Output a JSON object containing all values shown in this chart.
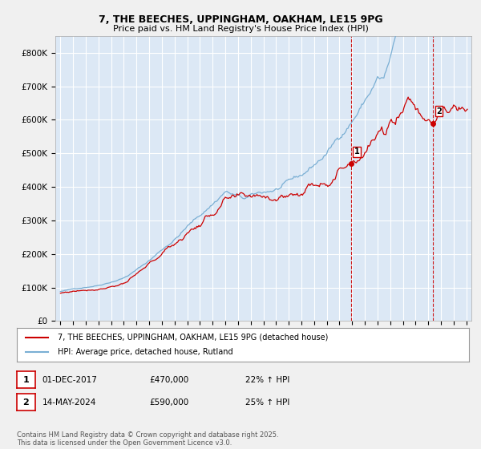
{
  "title1": "7, THE BEECHES, UPPINGHAM, OAKHAM, LE15 9PG",
  "title2": "Price paid vs. HM Land Registry's House Price Index (HPI)",
  "ylim": [
    0,
    850000
  ],
  "yticks": [
    0,
    100000,
    200000,
    300000,
    400000,
    500000,
    600000,
    700000,
    800000
  ],
  "ytick_labels": [
    "£0",
    "£100K",
    "£200K",
    "£300K",
    "£400K",
    "£500K",
    "£600K",
    "£700K",
    "£800K"
  ],
  "background_color": "#dce8f5",
  "grid_color": "#ffffff",
  "fig_bg": "#f0f0f0",
  "sale1_date": 2017.92,
  "sale1_price": 470000,
  "sale2_date": 2024.37,
  "sale2_price": 590000,
  "legend_line1": "7, THE BEECHES, UPPINGHAM, OAKHAM, LE15 9PG (detached house)",
  "legend_line2": "HPI: Average price, detached house, Rutland",
  "annotation1_date": "01-DEC-2017",
  "annotation1_price": "£470,000",
  "annotation1_hpi": "22% ↑ HPI",
  "annotation2_date": "14-MAY-2024",
  "annotation2_price": "£590,000",
  "annotation2_hpi": "25% ↑ HPI",
  "footer": "Contains HM Land Registry data © Crown copyright and database right 2025.\nThis data is licensed under the Open Government Licence v3.0.",
  "red_color": "#cc0000",
  "blue_color": "#7aafd4",
  "dashed_color": "#cc0000"
}
